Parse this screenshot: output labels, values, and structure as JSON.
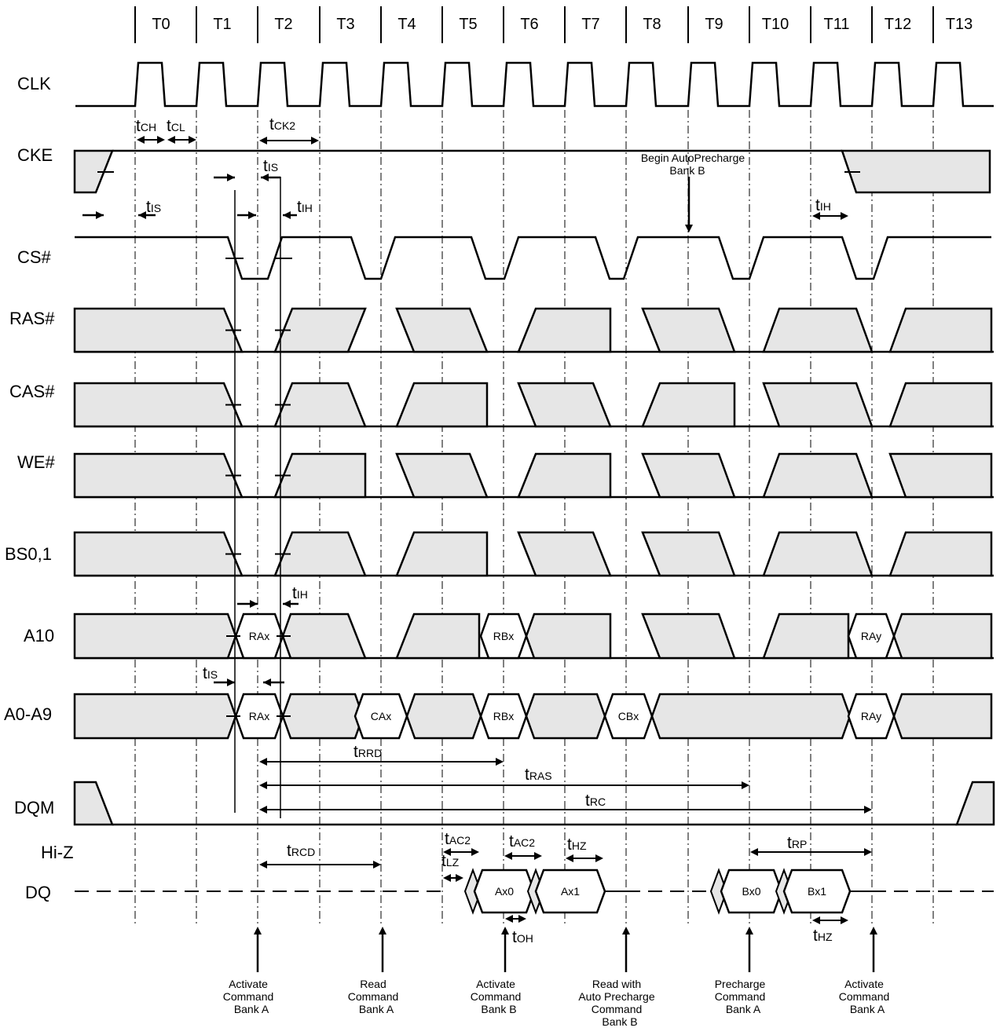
{
  "clock_labels": [
    "T0",
    "T1",
    "T2",
    "T3",
    "T4",
    "T5",
    "T6",
    "T7",
    "T8",
    "T9",
    "T10",
    "T11",
    "T12",
    "T13"
  ],
  "signals": {
    "clk": "CLK",
    "cke": "CKE",
    "cs": "CS#",
    "ras": "RAS#",
    "cas": "CAS#",
    "we": "WE#",
    "bs": "BS0,1",
    "a10": "A10",
    "addr": "A0-A9",
    "dqm": "DQM",
    "hiz": "Hi-Z",
    "dq": "DQ"
  },
  "bus_labels": {
    "a10": [
      "RAx",
      "RBx",
      "RAy"
    ],
    "addr": [
      "RAx",
      "CAx",
      "RBx",
      "CBx",
      "RAy"
    ],
    "dq": [
      "Ax0",
      "Ax1",
      "Bx0",
      "Bx1"
    ]
  },
  "timing": {
    "tch": {
      "main": "t",
      "sub": "CH"
    },
    "tcl": {
      "main": "t",
      "sub": "CL"
    },
    "tck2": {
      "main": "t",
      "sub": "CK2"
    },
    "tis_a": {
      "main": "t",
      "sub": "IS"
    },
    "tis_b": {
      "main": "t",
      "sub": "IS"
    },
    "tis_c": {
      "main": "t",
      "sub": "IS"
    },
    "tih_a": {
      "main": "t",
      "sub": "IH"
    },
    "tih_b": {
      "main": "t",
      "sub": "IH"
    },
    "tih_c": {
      "main": "t",
      "sub": "IH"
    },
    "trrd": {
      "main": "t",
      "sub": "RRD"
    },
    "tras": {
      "main": "t",
      "sub": "RAS"
    },
    "trc": {
      "main": "t",
      "sub": "RC"
    },
    "trcd": {
      "main": "t",
      "sub": "RCD"
    },
    "tac2_a": {
      "main": "t",
      "sub": "AC2"
    },
    "tac2_b": {
      "main": "t",
      "sub": "AC2"
    },
    "tlz": {
      "main": "t",
      "sub": "LZ"
    },
    "thz_a": {
      "main": "t",
      "sub": "HZ"
    },
    "thz_b": {
      "main": "t",
      "sub": "HZ"
    },
    "toh": {
      "main": "t",
      "sub": "OH"
    },
    "trp": {
      "main": "t",
      "sub": "RP"
    }
  },
  "annotation": [
    "Begin AutoPrecharge",
    "Bank B"
  ],
  "commands": [
    [
      "Activate",
      "Command",
      "Bank A"
    ],
    [
      "Read",
      "Command",
      "Bank A"
    ],
    [
      "Activate",
      "Command",
      "Bank B"
    ],
    [
      "Read with",
      "Auto Precharge",
      "Command",
      "Bank B"
    ],
    [
      "Precharge",
      "Command",
      "Bank A"
    ],
    [
      "Activate",
      "Command",
      "Bank A"
    ]
  ],
  "colors": {
    "fill": "#e6e6e6",
    "stroke": "#000000"
  }
}
